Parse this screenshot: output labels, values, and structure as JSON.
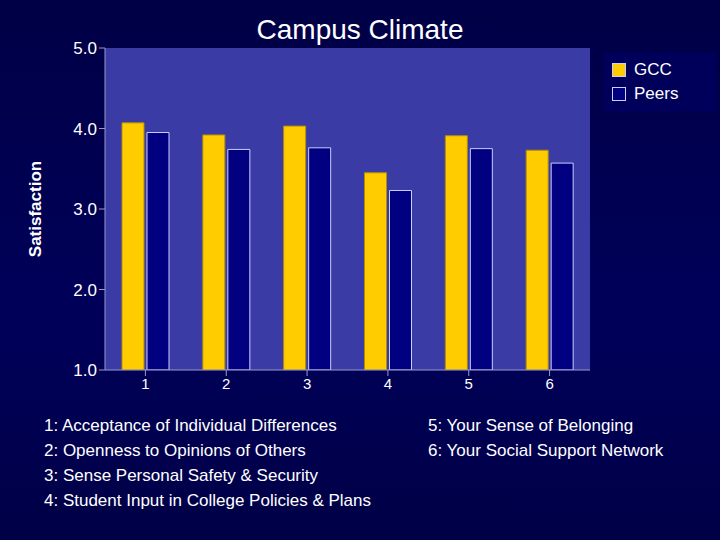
{
  "chart_data": {
    "type": "bar",
    "title": "Campus Climate",
    "y_label": "Satisfaction",
    "categories": [
      "1",
      "2",
      "3",
      "4",
      "5",
      "6"
    ],
    "series": [
      {
        "name": "GCC",
        "color": "#ffcc00",
        "values": [
          4.07,
          3.92,
          4.03,
          3.45,
          3.91,
          3.73
        ]
      },
      {
        "name": "Peers",
        "color": "#000080",
        "values": [
          3.95,
          3.74,
          3.76,
          3.23,
          3.75,
          3.57
        ]
      }
    ],
    "ylim": [
      1,
      5
    ],
    "yticks": [
      {
        "value": 1,
        "label": "1.0"
      },
      {
        "value": 2,
        "label": "2.0"
      },
      {
        "value": 3,
        "label": "3.0"
      },
      {
        "value": 4,
        "label": "4.0"
      },
      {
        "value": 5,
        "label": "5.0"
      }
    ],
    "grid": false,
    "legend": "upper right",
    "annotations": [
      "1: Acceptance of Individual Differences",
      "2: Openness to Opinions of Others",
      "3: Sense Personal Safety & Security",
      "4: Student Input in College Policies & Plans",
      "5: Your Sense of Belonging",
      "6: Your Social Support Network"
    ]
  }
}
